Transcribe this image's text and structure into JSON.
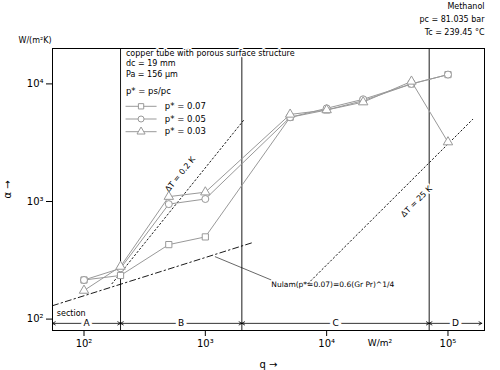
{
  "chart_data": {
    "type": "line",
    "log": true,
    "xlabel": "q",
    "ylabel": "α",
    "x_unit": "W/m²",
    "y_unit": "W/(m²K)",
    "xlim": [
      55,
      200000
    ],
    "ylim": [
      80,
      20000
    ],
    "xticks": [
      {
        "value": 100,
        "label": "10²"
      },
      {
        "value": 1000,
        "label": "10³"
      },
      {
        "value": 10000,
        "label": "10⁴"
      },
      {
        "value": 100000,
        "label": "10⁵"
      }
    ],
    "yticks": [
      {
        "value": 100,
        "label": "10²"
      },
      {
        "value": 1000,
        "label": "10³"
      },
      {
        "value": 10000,
        "label": "10⁴"
      }
    ],
    "x": [
      100,
      200,
      500,
      1000,
      5000,
      10000,
      20000,
      50000,
      100000
    ],
    "series": [
      {
        "name": "p* = 0.07",
        "color": "#999999",
        "marker": "square",
        "values": [
          215,
          235,
          430,
          500,
          5200,
          6000,
          7200,
          10000,
          12000
        ]
      },
      {
        "name": "p* = 0.05",
        "color": "#999999",
        "marker": "circle",
        "values": [
          215,
          270,
          950,
          1050,
          5200,
          6200,
          7400,
          10000,
          12000
        ]
      },
      {
        "name": "p* = 0.03",
        "color": "#999999",
        "marker": "triangle",
        "values": [
          175,
          280,
          1100,
          1200,
          5500,
          6000,
          7000,
          10500,
          3200
        ]
      }
    ],
    "legend": "upper left",
    "legend_title": "p* = ps/pc",
    "reference_lines": [
      {
        "x": [
          55,
          2500
        ],
        "values": [
          130,
          450
        ],
        "color": "black",
        "line_style": "dash-dot",
        "label": "Nulam(p*=0.07)=0.6(Gr Pr)^1/4",
        "label_x": 3500,
        "label_y": 215,
        "label_point": [
          1200,
          340
        ]
      },
      {
        "x": [
          170,
          2100
        ],
        "values": [
          200,
          5000
        ],
        "color": "black",
        "line_style": "dotted",
        "label": "ΔT = 0.2 K",
        "label_x": 620,
        "label_y": 1700
      },
      {
        "x": [
          7000,
          160000
        ],
        "values": [
          200,
          5000
        ],
        "color": "black",
        "line_style": "dotted",
        "label": "ΔT = 25 K",
        "label_x": 55000,
        "label_y": 1000
      }
    ],
    "vlines": {
      "x": [
        200,
        2000,
        70000
      ],
      "color": "black"
    },
    "sections": {
      "label": "section",
      "y": 92,
      "items": [
        {
          "name": "A",
          "x": [
            55,
            200
          ]
        },
        {
          "name": "B",
          "x": [
            200,
            2000
          ]
        },
        {
          "name": "C",
          "x": [
            2000,
            70000
          ]
        },
        {
          "name": "D",
          "x": [
            70000,
            190000
          ]
        }
      ]
    },
    "notes_left": [
      "copper tube with porous surface structure",
      "dc = 19 mm",
      "Pa = 156 μm"
    ],
    "notes_right": [
      "Methanol",
      "pc = 81.035 bar",
      "Tc = 239.45 °C"
    ]
  }
}
